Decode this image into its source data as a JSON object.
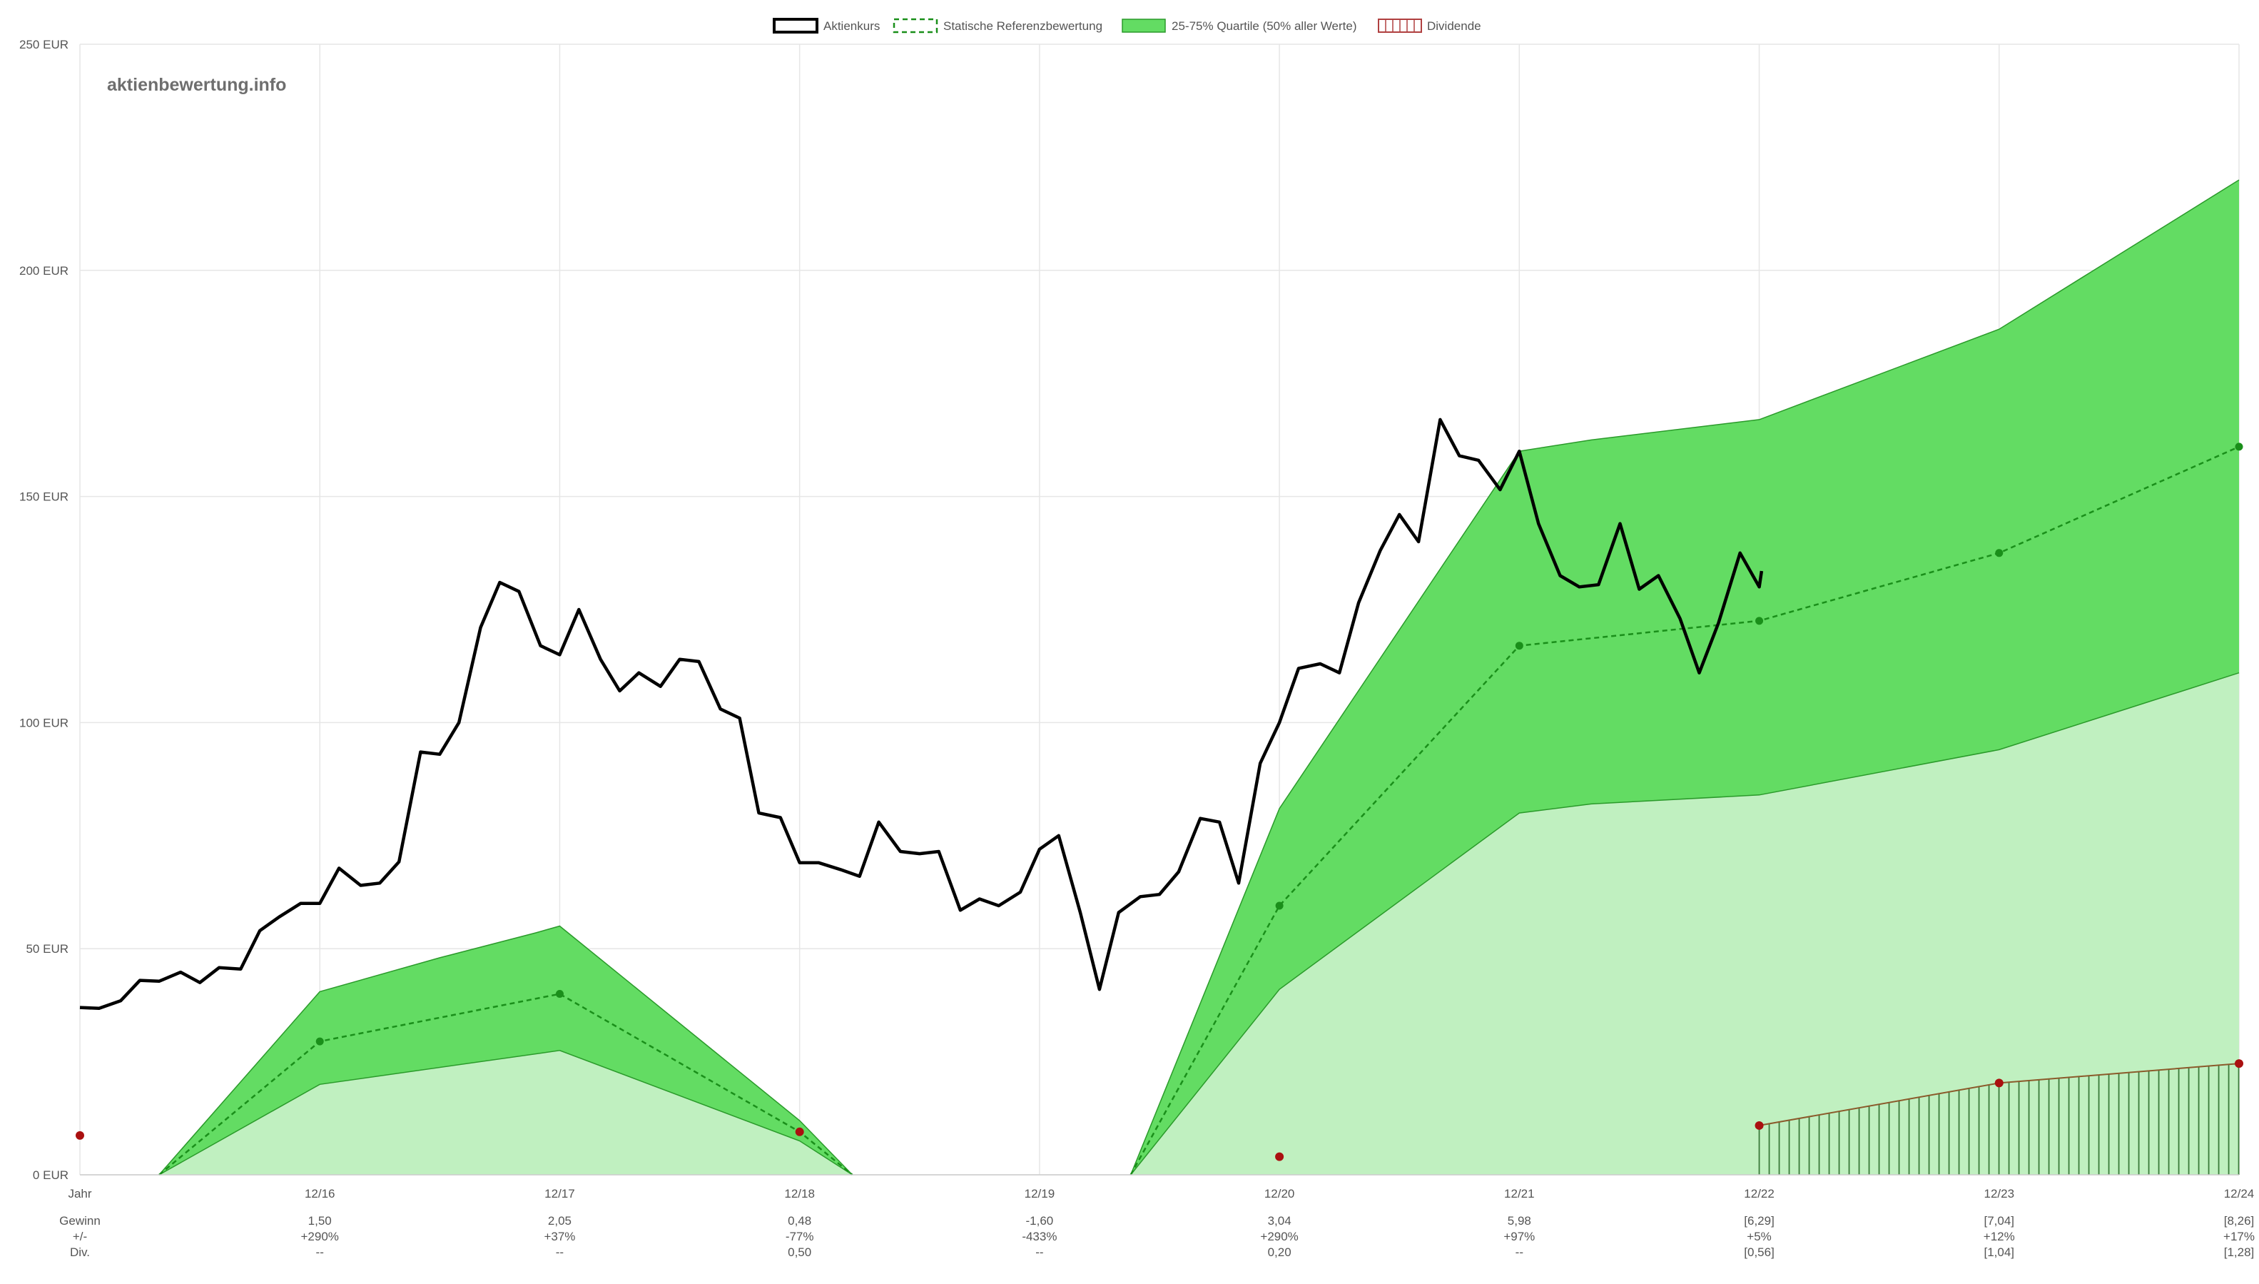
{
  "chart_data": {
    "type": "line",
    "watermark": "aktienbewertung.info",
    "legend": [
      {
        "label": "Aktienkurs",
        "style": "line",
        "color": "#000000"
      },
      {
        "label": "Statische Referenzbewertung",
        "style": "dashed",
        "color": "#1a8f1a"
      },
      {
        "label": "25-75% Quartile (50% aller Werte)",
        "style": "area",
        "color": "#63dc63"
      },
      {
        "label": "Dividende",
        "style": "hatched",
        "color": "#b04040"
      }
    ],
    "y_axis": {
      "min": 0,
      "max": 250,
      "ticks": [
        0,
        50,
        100,
        150,
        200,
        250
      ],
      "tick_labels": [
        "0 EUR",
        "50 EUR",
        "100 EUR",
        "150 EUR",
        "200 EUR",
        "250 EUR"
      ]
    },
    "x_axis": {
      "min": 0,
      "max": 9,
      "tick_labels": [
        "Jahr",
        "12/16",
        "12/17",
        "12/18",
        "12/19",
        "12/20",
        "12/21",
        "12/22",
        "12/23",
        "12/24"
      ]
    },
    "colors": {
      "upper_band": "#63dc63",
      "lower_band": "#c0f0c0",
      "band_edge": "#2a9a2a",
      "reference": "#1a8f1a",
      "dividend_point": "#aa1010",
      "dividend_line": "#8b5a2b",
      "hatch": "#3a7a3a",
      "price": "#000000"
    },
    "series": [
      {
        "name": "Aktienkurs",
        "points": [
          [
            0.0,
            37.0
          ],
          [
            0.08,
            36.8
          ],
          [
            0.17,
            38.5
          ],
          [
            0.25,
            43.0
          ],
          [
            0.33,
            42.8
          ],
          [
            0.42,
            44.8
          ],
          [
            0.5,
            42.5
          ],
          [
            0.58,
            45.8
          ],
          [
            0.67,
            45.5
          ],
          [
            0.75,
            54.0
          ],
          [
            0.83,
            57.0
          ],
          [
            0.92,
            60.0
          ],
          [
            1.0,
            60.0
          ],
          [
            1.08,
            67.8
          ],
          [
            1.17,
            64.0
          ],
          [
            1.25,
            64.5
          ],
          [
            1.33,
            69.2
          ],
          [
            1.42,
            93.5
          ],
          [
            1.5,
            93.0
          ],
          [
            1.58,
            100.0
          ],
          [
            1.67,
            121.0
          ],
          [
            1.75,
            131.0
          ],
          [
            1.83,
            129.0
          ],
          [
            1.92,
            117.0
          ],
          [
            2.0,
            115.0
          ],
          [
            2.08,
            125.0
          ],
          [
            2.17,
            114.0
          ],
          [
            2.25,
            107.0
          ],
          [
            2.33,
            111.0
          ],
          [
            2.42,
            108.0
          ],
          [
            2.5,
            114.0
          ],
          [
            2.58,
            113.5
          ],
          [
            2.67,
            103.0
          ],
          [
            2.75,
            101.0
          ],
          [
            2.83,
            80.0
          ],
          [
            2.92,
            79.0
          ],
          [
            3.0,
            69.0
          ],
          [
            3.08,
            69.0
          ],
          [
            3.17,
            67.5
          ],
          [
            3.25,
            66.0
          ],
          [
            3.33,
            78.0
          ],
          [
            3.42,
            71.5
          ],
          [
            3.5,
            71.0
          ],
          [
            3.58,
            71.5
          ],
          [
            3.67,
            58.5
          ],
          [
            3.75,
            61.0
          ],
          [
            3.83,
            59.5
          ],
          [
            3.92,
            62.5
          ],
          [
            4.0,
            72.0
          ],
          [
            4.08,
            75.0
          ],
          [
            4.17,
            58.0
          ],
          [
            4.25,
            41.0
          ],
          [
            4.33,
            58.0
          ],
          [
            4.42,
            61.5
          ],
          [
            4.5,
            62.0
          ],
          [
            4.58,
            67.0
          ],
          [
            4.67,
            78.8
          ],
          [
            4.75,
            78.0
          ],
          [
            4.83,
            64.5
          ],
          [
            4.92,
            91.0
          ],
          [
            5.0,
            100.0
          ],
          [
            5.08,
            112.0
          ],
          [
            5.17,
            113.0
          ],
          [
            5.25,
            111.0
          ],
          [
            5.33,
            126.5
          ],
          [
            5.42,
            138.0
          ],
          [
            5.5,
            146.0
          ],
          [
            5.58,
            140.0
          ],
          [
            5.67,
            167.0
          ],
          [
            5.75,
            159.0
          ],
          [
            5.83,
            158.0
          ],
          [
            5.92,
            151.5
          ],
          [
            6.0,
            160.0
          ],
          [
            6.08,
            144.0
          ],
          [
            6.17,
            132.5
          ],
          [
            6.25,
            130.0
          ],
          [
            6.33,
            130.5
          ],
          [
            6.42,
            144.0
          ],
          [
            6.5,
            129.5
          ],
          [
            6.58,
            132.5
          ],
          [
            6.67,
            123.0
          ],
          [
            6.75,
            111.0
          ],
          [
            6.83,
            122.0
          ],
          [
            6.92,
            137.5
          ],
          [
            7.0,
            130.0
          ],
          [
            7.01,
            133.5
          ]
        ]
      },
      {
        "name": "Statische Referenzbewertung",
        "segments": [
          [
            [
              0.33,
              0
            ],
            [
              1.0,
              29.5
            ],
            [
              2.0,
              40.0
            ],
            [
              3.0,
              9.5
            ],
            [
              3.22,
              0
            ]
          ],
          [
            [
              4.38,
              0
            ],
            [
              5.0,
              59.5
            ],
            [
              6.0,
              117.0
            ],
            [
              7.0,
              122.5
            ],
            [
              8.0,
              137.5
            ],
            [
              9.0,
              161.0
            ]
          ]
        ],
        "markers": [
          [
            1.0,
            29.5
          ],
          [
            2.0,
            40.0
          ],
          [
            3.0,
            9.5
          ],
          [
            5.0,
            59.5
          ],
          [
            6.0,
            117.0
          ],
          [
            7.0,
            122.5
          ],
          [
            8.0,
            137.5
          ],
          [
            9.0,
            161.0
          ]
        ]
      },
      {
        "name": "25-75% Quartile (50% aller Werte)",
        "segments": [
          {
            "upper": [
              [
                0.33,
                0
              ],
              [
                1.0,
                40.5
              ],
              [
                1.5,
                48.0
              ],
              [
                1.9,
                53.5
              ],
              [
                2.0,
                55.0
              ],
              [
                3.0,
                12.0
              ],
              [
                3.22,
                0
              ]
            ],
            "lower": [
              [
                0.33,
                0
              ],
              [
                1.0,
                20.0
              ],
              [
                2.0,
                27.5
              ],
              [
                3.0,
                7.5
              ],
              [
                3.22,
                0
              ]
            ]
          },
          {
            "upper": [
              [
                4.38,
                0
              ],
              [
                5.0,
                81.0
              ],
              [
                6.0,
                160.0
              ],
              [
                6.3,
                162.5
              ],
              [
                7.0,
                167.0
              ],
              [
                8.0,
                187.0
              ],
              [
                9.0,
                220.0
              ]
            ],
            "lower": [
              [
                4.38,
                0
              ],
              [
                5.0,
                41.0
              ],
              [
                6.0,
                80.0
              ],
              [
                6.3,
                82.0
              ],
              [
                7.0,
                84.0
              ],
              [
                8.0,
                94.0
              ],
              [
                9.0,
                111.0
              ]
            ]
          }
        ]
      },
      {
        "name": "Dividende",
        "points": [
          [
            0.0,
            8.7
          ],
          [
            3.0,
            9.5
          ],
          [
            5.0,
            4.0
          ],
          [
            7.0,
            10.9
          ],
          [
            8.0,
            20.3
          ],
          [
            9.0,
            24.6
          ]
        ],
        "hatched_range": [
          7.0,
          9.0
        ]
      }
    ],
    "table": {
      "row_labels": [
        "Gewinn",
        "+/-",
        "Div."
      ],
      "columns": [
        {
          "gewinn": "1,50",
          "change": "+290%",
          "div": "--"
        },
        {
          "gewinn": "2,05",
          "change": "+37%",
          "div": "--"
        },
        {
          "gewinn": "0,48",
          "change": "-77%",
          "div": "0,50"
        },
        {
          "gewinn": "-1,60",
          "change": "-433%",
          "div": "--"
        },
        {
          "gewinn": "3,04",
          "change": "+290%",
          "div": "0,20"
        },
        {
          "gewinn": "5,98",
          "change": "+97%",
          "div": "--"
        },
        {
          "gewinn": "[6,29]",
          "change": "+5%",
          "div": "[0,56]"
        },
        {
          "gewinn": "[7,04]",
          "change": "+12%",
          "div": "[1,04]"
        },
        {
          "gewinn": "[8,26]",
          "change": "+17%",
          "div": "[1,28]"
        }
      ]
    }
  }
}
